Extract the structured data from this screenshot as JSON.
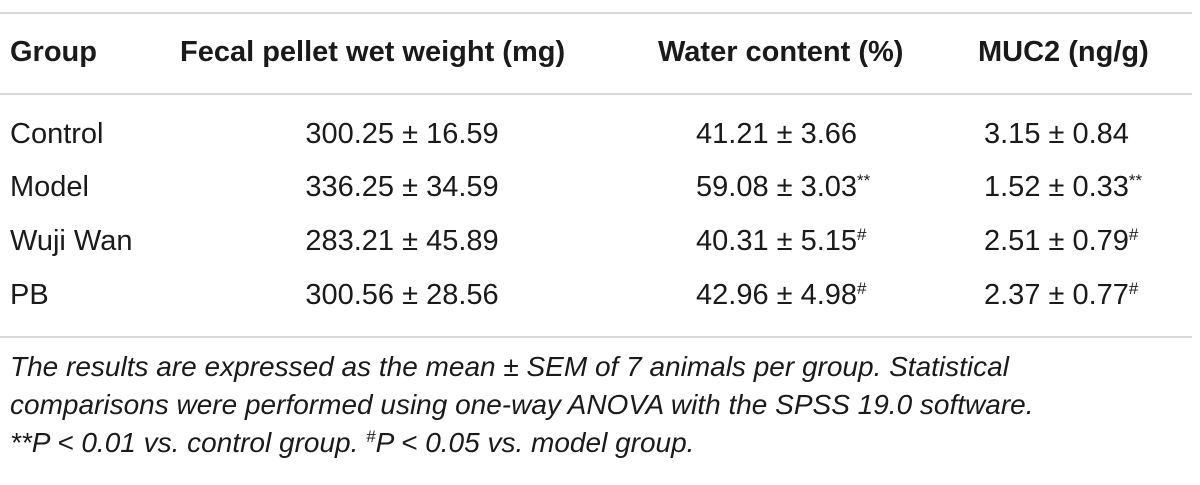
{
  "table": {
    "headers": {
      "group": "Group",
      "weight": "Fecal pellet wet weight (mg)",
      "water": "Water content (%)",
      "muc": "MUC2 (ng/g)"
    },
    "rows": [
      {
        "group": "Control",
        "weight": "300.25 ± 16.59",
        "water": "41.21 ± 3.66",
        "water_sup": "",
        "muc": "3.15 ± 0.84",
        "muc_sup": ""
      },
      {
        "group": "Model",
        "weight": "336.25 ± 34.59",
        "water": "59.08 ± 3.03",
        "water_sup": "**",
        "muc": "1.52 ± 0.33",
        "muc_sup": "**"
      },
      {
        "group": "Wuji Wan",
        "weight": "283.21 ± 45.89",
        "water": "40.31 ± 5.15",
        "water_sup": "#",
        "muc": "2.51 ± 0.79",
        "muc_sup": "#"
      },
      {
        "group": "PB",
        "weight": "300.56 ± 28.56",
        "water": "42.96 ± 4.98",
        "water_sup": "#",
        "muc": "2.37 ± 0.77",
        "muc_sup": "#"
      }
    ]
  },
  "footnote": {
    "line1": "The results are expressed as the mean ± SEM of 7 animals per group. Statistical",
    "line2": "comparisons were performed using one-way ANOVA with the SPSS 19.0 software.",
    "line3_a": "**P < 0.01 vs. control group. ",
    "line3_hash": "#",
    "line3_b": "P < 0.05 vs. model group."
  }
}
